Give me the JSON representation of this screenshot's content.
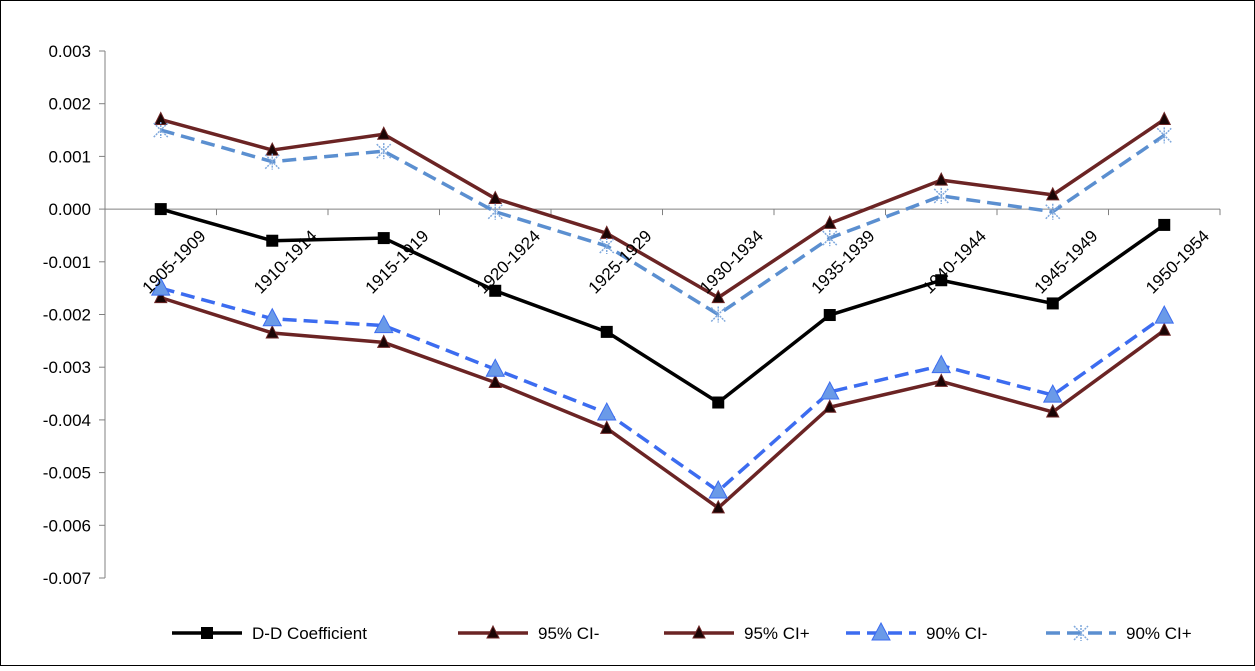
{
  "chart_data": {
    "type": "line",
    "categories": [
      "1905-1909",
      "1910-1914",
      "1915-1919",
      "1920-1924",
      "1925-1929",
      "1930-1934",
      "1935-1939",
      "1940-1944",
      "1945-1949",
      "1950-1954"
    ],
    "ylim": [
      -0.007,
      0.003
    ],
    "yticks": [
      0.003,
      0.002,
      0.001,
      0.0,
      -0.001,
      -0.002,
      -0.003,
      -0.004,
      -0.005,
      -0.006,
      -0.007
    ],
    "ytick_labels": [
      "0.003",
      "0.002",
      "0.001",
      "0.000",
      "-0.001",
      "-0.002",
      "-0.003",
      "-0.004",
      "-0.005",
      "-0.006",
      "-0.007"
    ],
    "grid": false,
    "legend_position": "bottom",
    "series": [
      {
        "name": "D-D Coefficient",
        "color": "#000000",
        "dash": "solid",
        "marker": "square",
        "values": [
          0.0,
          -0.0006,
          -0.00055,
          -0.00155,
          -0.00233,
          -0.00367,
          -0.00201,
          -0.00135,
          -0.00179,
          -0.0003
        ]
      },
      {
        "name": "95% CI-",
        "color": "#6b2424",
        "dash": "solid",
        "marker": "triangle",
        "values": [
          -0.00168,
          -0.00235,
          -0.00253,
          -0.00329,
          -0.00416,
          -0.00567,
          -0.00376,
          -0.00327,
          -0.00385,
          -0.0023
        ]
      },
      {
        "name": "95% CI+",
        "color": "#6b2424",
        "dash": "solid",
        "marker": "triangle",
        "values": [
          0.0017,
          0.00112,
          0.00142,
          0.0002,
          -0.00046,
          -0.00168,
          -0.00027,
          0.00055,
          0.00027,
          0.0017
        ]
      },
      {
        "name": "90% CI-",
        "color": "#3c6cf0",
        "dash": "dashed",
        "marker": "triangle-large",
        "values": [
          -0.0015,
          -0.00208,
          -0.00221,
          -0.00304,
          -0.00387,
          -0.00535,
          -0.00347,
          -0.00297,
          -0.00353,
          -0.00203
        ]
      },
      {
        "name": "90% CI+",
        "color": "#5b8fd0",
        "dash": "dashed",
        "marker": "star",
        "values": [
          0.0015,
          0.0009,
          0.0011,
          -5e-05,
          -0.0007,
          -0.002,
          -0.00055,
          0.00025,
          -5e-05,
          0.0014
        ]
      }
    ]
  }
}
